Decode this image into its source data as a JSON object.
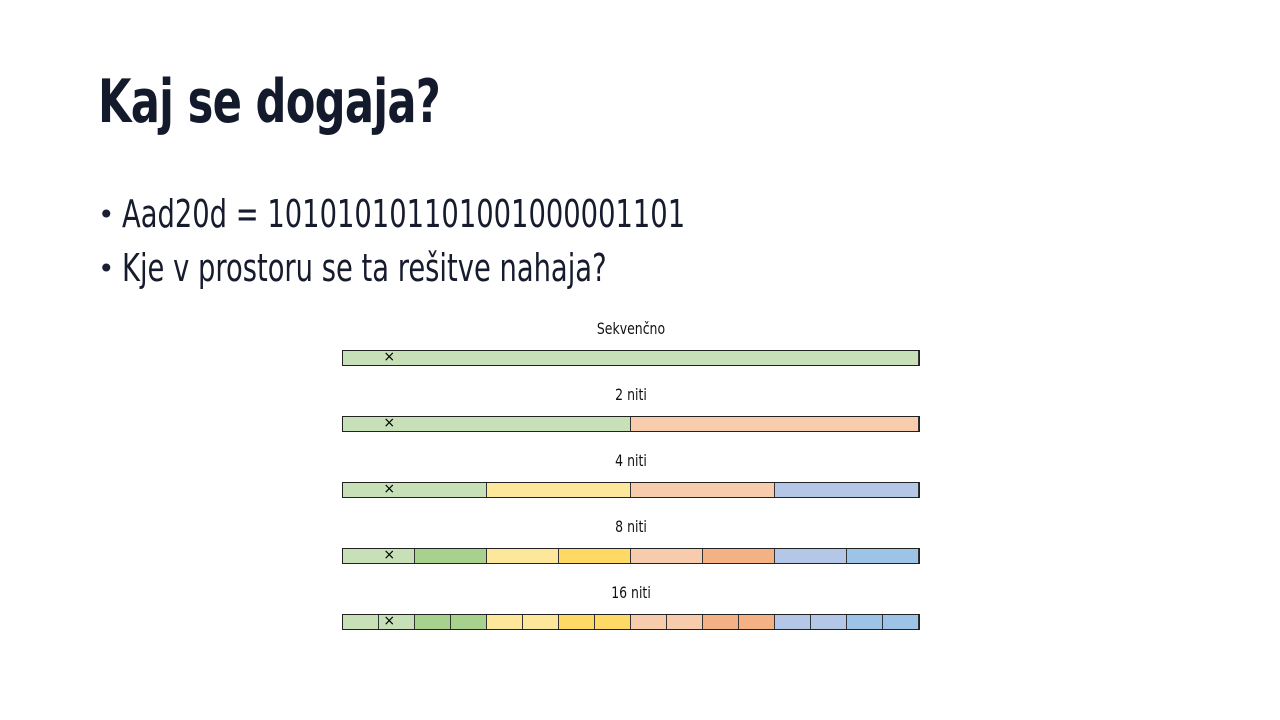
{
  "slide": {
    "title": "Kaj se dogaja?",
    "bullets": [
      {
        "bullet": "•",
        "text": "Aad20d = 101010101101001000001101"
      },
      {
        "bullet": "•",
        "text": "Kje v prostoru se ta rešitve nahaja?"
      }
    ]
  },
  "diagram": {
    "marker": "×",
    "marker_position": 0.08,
    "rows": [
      {
        "label": "Sekvenčno",
        "segments": [
          "#c8e0b8"
        ]
      },
      {
        "label": "2 niti",
        "segments": [
          "#c8e0b8",
          "#f6ccac"
        ]
      },
      {
        "label": "4 niti",
        "segments": [
          "#c8e0b8",
          "#fde79a",
          "#f6ccac",
          "#b4c7e7"
        ]
      },
      {
        "label": "8 niti",
        "segments": [
          "#c8e0b8",
          "#a9d18e",
          "#fde79a",
          "#ffd966",
          "#f6ccac",
          "#f4b183",
          "#b4c7e7",
          "#9dc3e6"
        ]
      },
      {
        "label": "16 niti",
        "segments": [
          "#c8e0b8",
          "#c8e0b8",
          "#a9d18e",
          "#a9d18e",
          "#fde79a",
          "#fde79a",
          "#ffd966",
          "#ffd966",
          "#f6ccac",
          "#f6ccac",
          "#f4b183",
          "#f4b183",
          "#b4c7e7",
          "#b4c7e7",
          "#9dc3e6",
          "#9dc3e6"
        ]
      }
    ]
  }
}
